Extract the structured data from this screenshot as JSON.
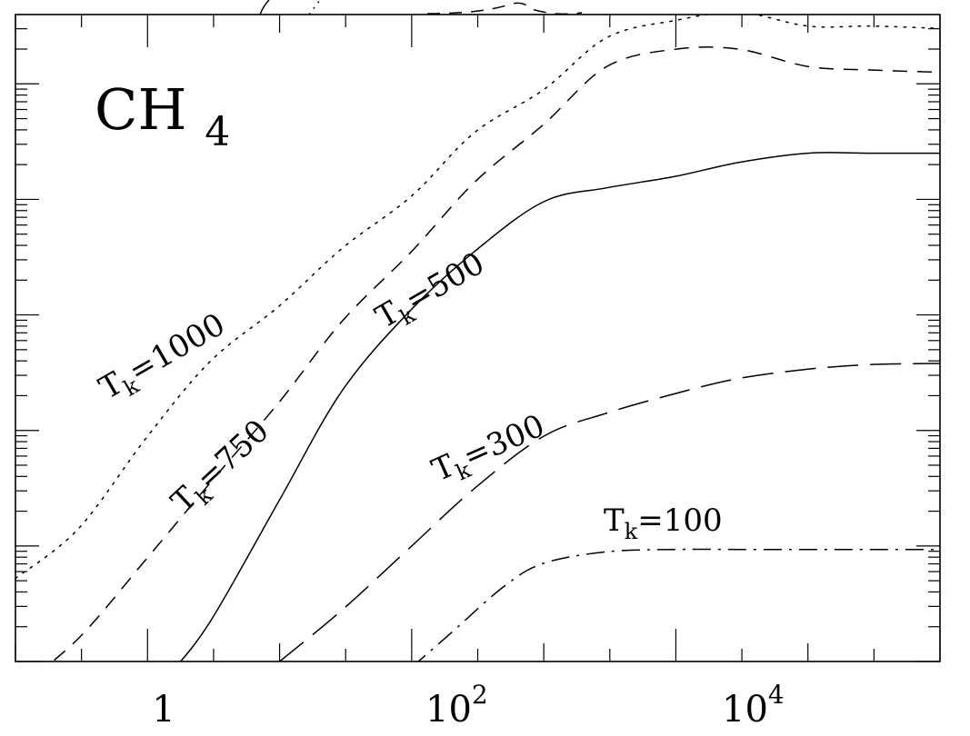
{
  "chart_data": {
    "type": "line",
    "title": "",
    "xlabel": "",
    "ylabel": "",
    "x_scale": "log",
    "xlim": [
      0.1,
      1000000
    ],
    "ylim": [
      0,
      5.6
    ],
    "x_tick_labels": [
      {
        "value": 1,
        "base": "1",
        "exp": ""
      },
      {
        "value": 100,
        "base": "10",
        "exp": "2"
      },
      {
        "value": 10000,
        "base": "10",
        "exp": "4"
      }
    ],
    "annotation": {
      "species": "CH",
      "subscript": "4"
    },
    "series": [
      {
        "name": "T_k=1000",
        "label_main": "T",
        "label_sub": "k",
        "label_value": "=1000",
        "style": "dotted",
        "x": [
          0.1,
          0.3,
          1,
          3,
          10,
          30,
          100,
          300,
          1000,
          3000,
          10000,
          30000,
          100000,
          300000,
          1000000
        ],
        "y": [
          0.72,
          1.15,
          1.95,
          2.6,
          3.08,
          3.58,
          4.03,
          4.58,
          4.95,
          5.4,
          5.55,
          5.62,
          5.5,
          5.5,
          5.48
        ]
      },
      {
        "name": "T_k=750",
        "label_main": "T",
        "label_sub": "k",
        "label_value": "=750",
        "style": "dashed",
        "x": [
          0.1,
          0.3,
          1,
          3,
          10,
          30,
          100,
          300,
          1000,
          3000,
          10000,
          30000,
          100000,
          300000,
          1000000
        ],
        "y": [
          -0.25,
          0.2,
          0.9,
          1.55,
          2.25,
          2.95,
          3.55,
          4.15,
          4.65,
          5.15,
          5.3,
          5.3,
          5.15,
          5.12,
          5.1
        ]
      },
      {
        "name": "T_k=500",
        "label_main": "T",
        "label_sub": "k",
        "label_value": "=500",
        "style": "solid",
        "x": [
          1.5,
          3,
          10,
          30,
          100,
          300,
          1000,
          3000,
          10000,
          30000,
          100000,
          300000,
          1000000
        ],
        "y": [
          -0.1,
          0.35,
          1.4,
          2.35,
          3.05,
          3.55,
          3.98,
          4.1,
          4.2,
          4.32,
          4.4,
          4.4,
          4.4
        ]
      },
      {
        "name": "T_k=300",
        "label_main": "T",
        "label_sub": "k",
        "label_value": "=300",
        "style": "long-dashed",
        "x": [
          10,
          30,
          100,
          300,
          1000,
          3000,
          10000,
          30000,
          100000,
          300000,
          1000000
        ],
        "y": [
          0.0,
          0.45,
          1.0,
          1.5,
          1.95,
          2.15,
          2.32,
          2.45,
          2.53,
          2.57,
          2.58
        ]
      },
      {
        "name": "T_k=100",
        "label_main": "T",
        "label_sub": "k",
        "label_value": "=100",
        "style": "dash-dot",
        "x": [
          100,
          200,
          500,
          1000,
          3000,
          10000,
          30000,
          100000,
          300000,
          1000000
        ],
        "y": [
          -0.05,
          0.25,
          0.65,
          0.85,
          0.95,
          0.97,
          0.97,
          0.97,
          0.97,
          0.97
        ]
      }
    ]
  }
}
